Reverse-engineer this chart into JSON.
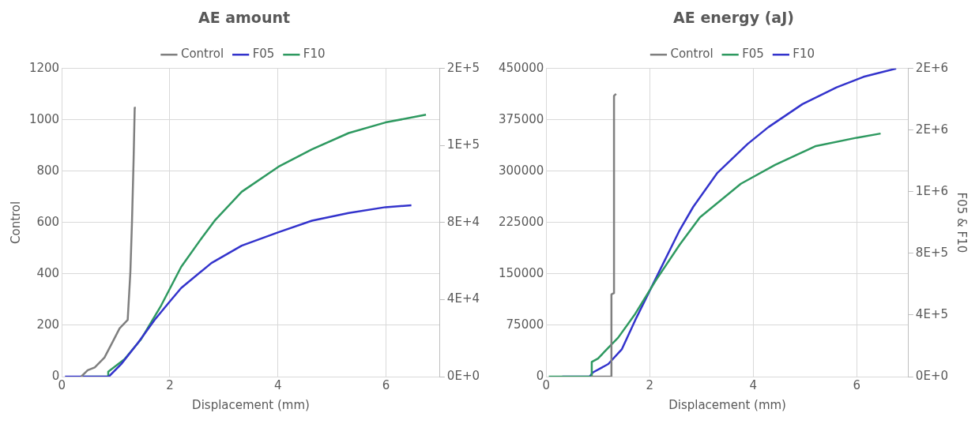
{
  "chart_data": [
    {
      "type": "line",
      "title": "AE amount",
      "xlabel": "Displacement (mm)",
      "ylabel": "Control",
      "legend": "top",
      "grid": true,
      "xlim": [
        0,
        7
      ],
      "xticks": [
        0,
        2,
        4,
        6
      ],
      "ylim": [
        0,
        1200
      ],
      "yticks": [
        0,
        200,
        400,
        600,
        800,
        1000,
        1200
      ],
      "y2lim": [
        0,
        160000
      ],
      "y2ticks": [
        {
          "value": 0,
          "label": "0E+0"
        },
        {
          "value": 40000,
          "label": "4E+4"
        },
        {
          "value": 80000,
          "label": "8E+4"
        },
        {
          "value": 120000,
          "label": "1E+5"
        },
        {
          "value": 160000,
          "label": "2E+5"
        }
      ],
      "series": [
        {
          "name": "Control",
          "color": "#7f7f7f",
          "x": [
            0.36,
            0.48,
            0.61,
            0.79,
            0.95,
            1.07,
            1.22,
            1.27,
            1.3,
            1.33,
            1.35,
            1.37
          ],
          "values": [
            0,
            25,
            36,
            74,
            139,
            188,
            221,
            409,
            606,
            851,
            1047,
            1047
          ]
        },
        {
          "name": "F05",
          "color": "#3333cc",
          "axis": "y2",
          "x": [
            0.06,
            0.87,
            1.1,
            1.41,
            1.72,
            1.97,
            2.21,
            2.77,
            3.33,
            4.01,
            4.63,
            5.31,
            5.99,
            6.47
          ],
          "values": [
            0,
            0,
            6500,
            17500,
            29500,
            38000,
            46000,
            59000,
            68000,
            75000,
            81000,
            85000,
            88000,
            89000
          ]
        },
        {
          "name": "F10",
          "color": "#2e9960",
          "axis": "y2",
          "x": [
            0.36,
            0.85,
            0.86,
            1.16,
            1.47,
            1.84,
            2.21,
            2.59,
            2.83,
            3.33,
            4.01,
            4.63,
            5.31,
            5.99,
            6.74
          ],
          "values": [
            0,
            0,
            2600,
            9000,
            19500,
            37000,
            57000,
            72000,
            81000,
            96000,
            109000,
            118000,
            126500,
            132000,
            136000
          ]
        }
      ]
    },
    {
      "type": "line",
      "title": "AE energy (aJ)",
      "xlabel": "Displacement (mm)",
      "y2label": "F05 & F10",
      "legend": "top",
      "grid": true,
      "xlim": [
        0,
        7
      ],
      "xticks": [
        0,
        2,
        4,
        6
      ],
      "ylim": [
        0,
        450000
      ],
      "yticks": [
        0,
        75000,
        150000,
        225000,
        300000,
        375000,
        450000
      ],
      "y2lim": [
        0,
        2000000
      ],
      "y2ticks": [
        {
          "value": 0,
          "label": "0E+0"
        },
        {
          "value": 400000,
          "label": "4E+5"
        },
        {
          "value": 800000,
          "label": "8E+5"
        },
        {
          "value": 1200000,
          "label": "1E+6"
        },
        {
          "value": 1600000,
          "label": "2E+6"
        },
        {
          "value": 2000000,
          "label": "2E+6"
        }
      ],
      "series": [
        {
          "name": "Control",
          "color": "#7f7f7f",
          "x": [
            0.87,
            1.25,
            1.26,
            1.31,
            1.31,
            1.35
          ],
          "values": [
            0,
            0,
            120000,
            122000,
            410000,
            413000
          ]
        },
        {
          "name": "F05",
          "color": "#2e9960",
          "axis": "y2",
          "x": [
            0.05,
            0.87,
            0.88,
            1.0,
            1.13,
            1.39,
            1.72,
            2.12,
            2.58,
            2.97,
            3.76,
            4.42,
            5.21,
            6.0,
            6.46
          ],
          "values": [
            0,
            0,
            95000,
            117000,
            163000,
            253000,
            408000,
            626000,
            857000,
            1034000,
            1252000,
            1374000,
            1497000,
            1551000,
            1578000
          ]
        },
        {
          "name": "F10",
          "color": "#3333cc",
          "axis": "y2",
          "x": [
            0.31,
            0.84,
            0.9,
            1.2,
            1.46,
            1.72,
            2.18,
            2.58,
            2.84,
            3.3,
            3.89,
            4.29,
            4.95,
            5.61,
            6.13,
            6.76
          ],
          "values": [
            0,
            0,
            27000,
            82000,
            177000,
            367000,
            680000,
            952000,
            1102000,
            1320000,
            1510000,
            1619000,
            1769000,
            1878000,
            1946000,
            2000000
          ]
        }
      ]
    }
  ]
}
